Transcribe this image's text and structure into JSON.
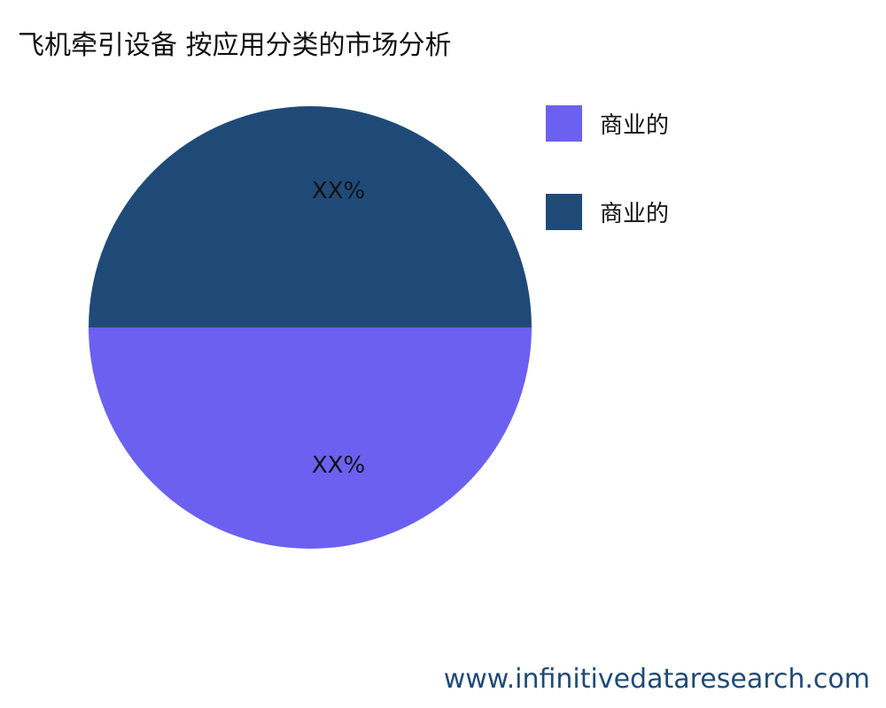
{
  "chart_data": {
    "type": "pie",
    "title": "飞机牵引设备 按应用分类的市场分析",
    "slices": [
      {
        "name": "商业的",
        "value": 50,
        "label": "XX%",
        "color": "#6c60f0"
      },
      {
        "name": "商业的",
        "value": 50,
        "label": "XX%",
        "color": "#1f4a78"
      }
    ],
    "legend_position": "right"
  },
  "watermark": "www.infinitivedataresearch.com"
}
